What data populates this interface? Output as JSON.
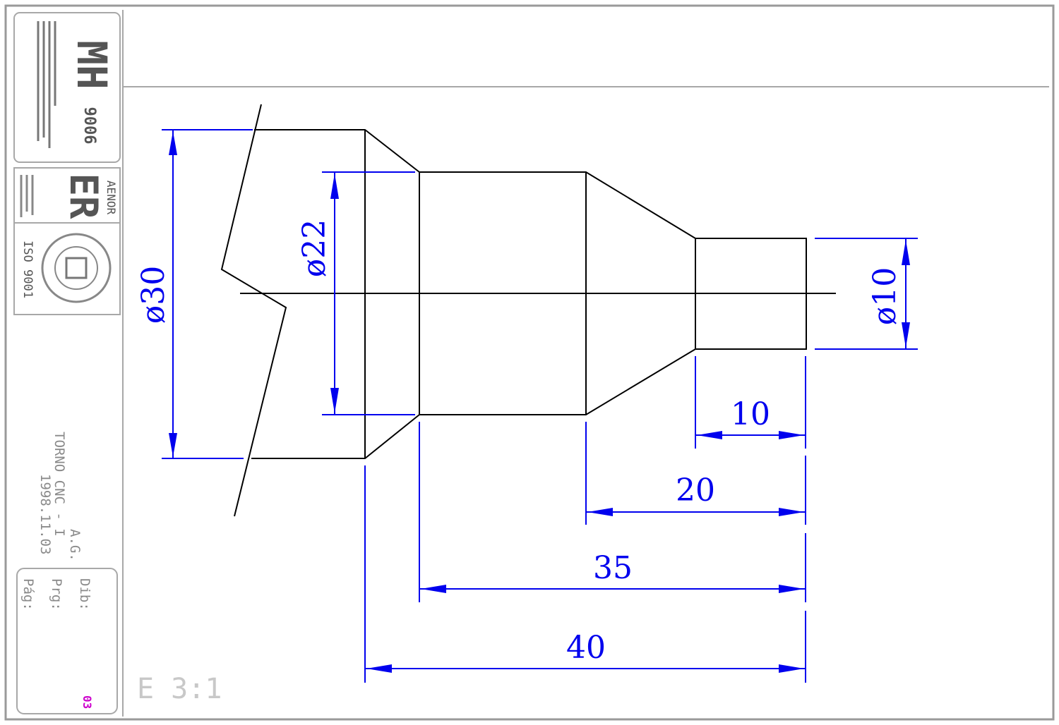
{
  "title_block": {
    "logo_lettering": "MH",
    "logo_code": "9006",
    "cert_brand": "AENOR",
    "cert_mark": "ER",
    "cert_standard": "ISO 9001",
    "machine": "TORNO CNC - I",
    "author": "A.G.",
    "date": "1998.11.03",
    "label_dib": "Dib:",
    "label_prg": "Prg:",
    "label_pag": "Pág:",
    "sheet_no": "03"
  },
  "scale_label": "E 3:1",
  "dimensions": {
    "diameter_30": "ø30",
    "diameter_22": "ø22",
    "diameter_10": "ø10",
    "length_10": "10",
    "length_20": "20",
    "length_35": "35",
    "length_40": "40"
  },
  "colors": {
    "dimension": "#0000ee",
    "part_outline": "#000000",
    "frame": "#9a9a9a",
    "sheet_number": "#cc00cc"
  }
}
